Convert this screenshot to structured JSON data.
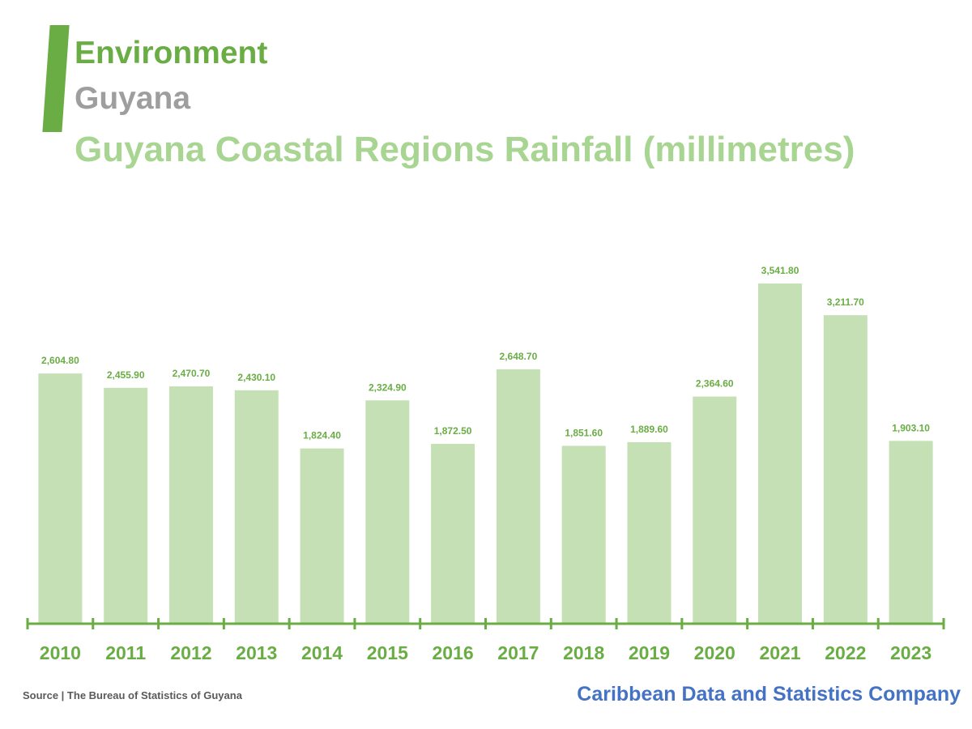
{
  "header": {
    "category": "Environment",
    "country": "Guyana",
    "title": "Guyana Coastal Regions Rainfall (millimetres)"
  },
  "footer": {
    "source": "Source | The Bureau of Statistics of Guyana",
    "brand": "Caribbean Data and Statistics Company"
  },
  "colors": {
    "accent": "#6aad45",
    "bar": "#c5e0b4",
    "title_light": "#a8d592",
    "subtitle_gray": "#9e9e9e",
    "brand_blue": "#4472c4"
  },
  "chart_data": {
    "type": "bar",
    "title": "Guyana Coastal Regions Rainfall (millimetres)",
    "categories": [
      "2010",
      "2011",
      "2012",
      "2013",
      "2014",
      "2015",
      "2016",
      "2017",
      "2018",
      "2019",
      "2020",
      "2021",
      "2022",
      "2023"
    ],
    "values": [
      2604.8,
      2455.9,
      2470.7,
      2430.1,
      1824.4,
      2324.9,
      1872.5,
      2648.7,
      1851.6,
      1889.6,
      2364.6,
      3541.8,
      3211.7,
      1903.1
    ],
    "value_labels": [
      "2,604.80",
      "2,455.90",
      "2,470.70",
      "2,430.10",
      "1,824.40",
      "2,324.90",
      "1,872.50",
      "2,648.70",
      "1,851.60",
      "1,889.60",
      "2,364.60",
      "3,541.80",
      "3,211.70",
      "1,903.10"
    ],
    "xlabel": "",
    "ylabel": "",
    "ylim": [
      0,
      3541.8
    ],
    "grid": false,
    "y_axis_visible": false
  }
}
